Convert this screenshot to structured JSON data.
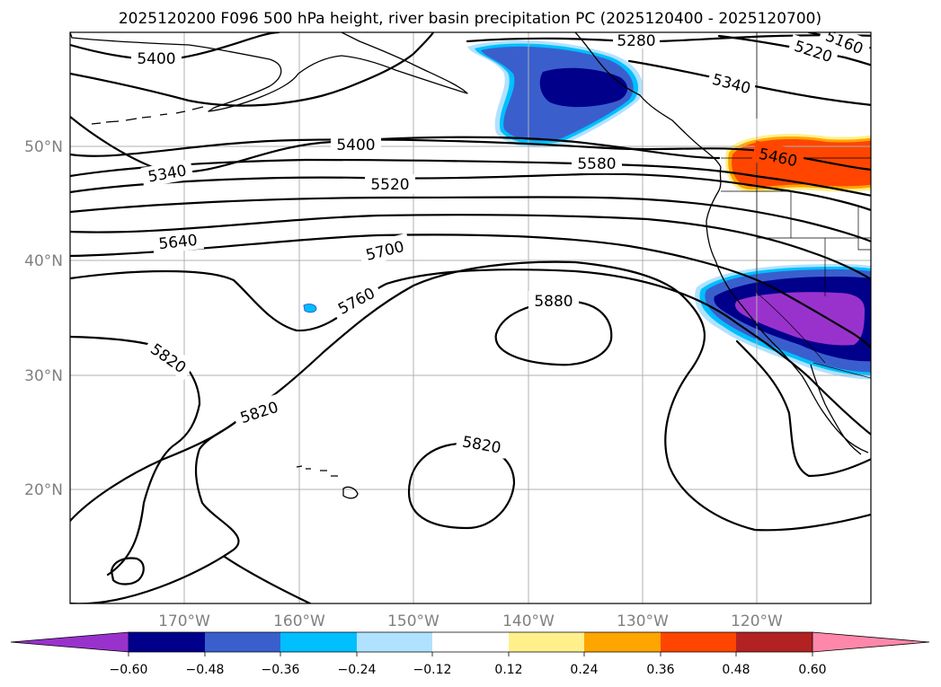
{
  "title": "2025120200 F096 500 hPa height, river basin precipitation PC (2025120400 - 2025120700)",
  "map": {
    "lat_labels": [
      "50°N",
      "40°N",
      "30°N",
      "20°N"
    ],
    "lon_labels": [
      "170°W",
      "160°W",
      "150°W",
      "140°W",
      "130°W",
      "120°W"
    ],
    "height_contour_labels": [
      "5280",
      "5160",
      "5220",
      "5340",
      "5400",
      "5400",
      "5340",
      "5460",
      "5580",
      "5520",
      "5640",
      "5700",
      "5760",
      "5880",
      "5820",
      "5820",
      "5820"
    ]
  },
  "colorbar": {
    "ticks": [
      "−0.60",
      "−0.48",
      "−0.36",
      "−0.24",
      "−0.12",
      "0.12",
      "0.24",
      "0.36",
      "0.48",
      "0.60"
    ],
    "colors": [
      "#9932cc",
      "#00008b",
      "#3a5fcd",
      "#00bfff",
      "#b0e2ff",
      "#ffffff",
      "#fff08c",
      "#ffa500",
      "#ff4500",
      "#b22222",
      "#ff88aa"
    ]
  },
  "colors": {
    "contour": "#000000",
    "grid": "#b0b0b0",
    "axis_label": "#808080"
  }
}
